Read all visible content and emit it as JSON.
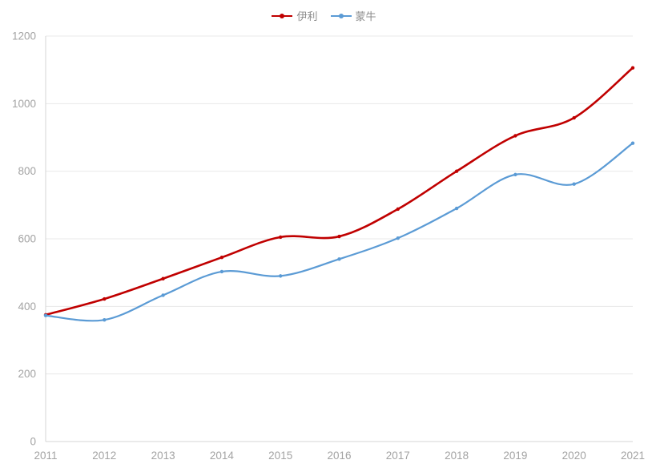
{
  "chart_data": {
    "type": "line",
    "title": "",
    "xlabel": "",
    "ylabel": "",
    "categories": [
      "2011",
      "2012",
      "2013",
      "2014",
      "2015",
      "2016",
      "2017",
      "2018",
      "2019",
      "2020",
      "2021"
    ],
    "series": [
      {
        "name": "伊利",
        "color": "#c00000",
        "values": [
          375,
          422,
          482,
          545,
          605,
          607,
          688,
          800,
          905,
          958,
          1106
        ]
      },
      {
        "name": "蒙牛",
        "color": "#5b9bd5",
        "values": [
          373,
          360,
          433,
          503,
          490,
          540,
          602,
          690,
          790,
          762,
          883
        ]
      }
    ],
    "ylim": [
      0,
      1200
    ],
    "yticks": [
      0,
      200,
      400,
      600,
      800,
      1000,
      1200
    ],
    "grid": true,
    "legend_position": "top"
  },
  "colors": {
    "grid": "#e8e8e8",
    "axis": "#d6d6d6",
    "tick_label": "#a3a3a3",
    "legend_text": "#8c8c8c",
    "background": "#ffffff"
  }
}
